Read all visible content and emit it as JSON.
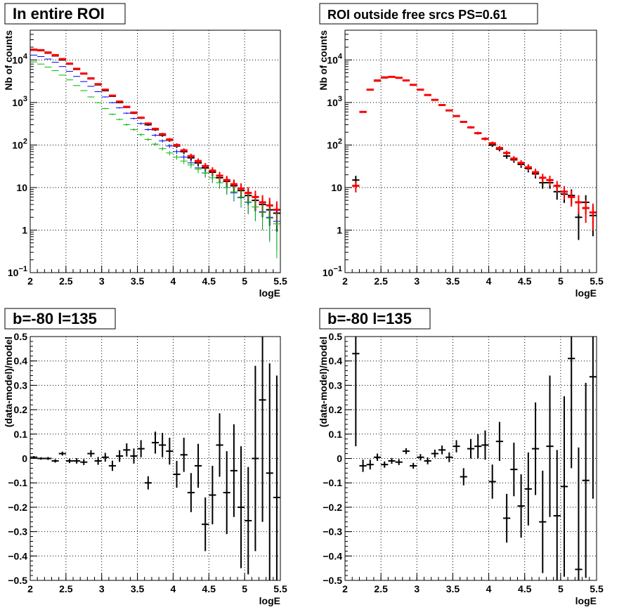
{
  "chart_data": [
    {
      "type": "scatter",
      "title": "In entire ROI",
      "xlabel": "logE",
      "ylabel": "Nb of counts",
      "xlim": [
        2,
        5.5
      ],
      "ylim": [
        0.1,
        50000
      ],
      "yscale": "log",
      "grid": true,
      "x_ticks": [
        "2",
        "2.5",
        "3",
        "3.5",
        "4",
        "4.5",
        "5",
        "5.5"
      ],
      "y_ticks": [
        {
          "value": 0.1,
          "base": "10",
          "exp": "−1"
        },
        {
          "value": 1,
          "base": "1",
          "exp": ""
        },
        {
          "value": 10,
          "base": "10",
          "exp": ""
        },
        {
          "value": 100,
          "base": "10",
          "exp": "2"
        },
        {
          "value": 1000,
          "base": "10",
          "exp": "3"
        },
        {
          "value": 10000,
          "base": "10",
          "exp": "4"
        }
      ],
      "x": [
        2.05,
        2.15,
        2.25,
        2.35,
        2.45,
        2.55,
        2.65,
        2.75,
        2.85,
        2.95,
        3.05,
        3.15,
        3.25,
        3.35,
        3.45,
        3.55,
        3.65,
        3.75,
        3.85,
        3.95,
        4.05,
        4.15,
        4.25,
        4.35,
        4.45,
        4.55,
        4.65,
        4.75,
        4.85,
        4.95,
        5.05,
        5.15,
        5.25,
        5.35,
        5.45
      ],
      "series": [
        {
          "color": "#000000",
          "values": [
            17000,
            16500,
            14500,
            12500,
            10000,
            8000,
            6000,
            4700,
            3600,
            2600,
            1900,
            1400,
            1000,
            770,
            560,
            430,
            300,
            230,
            170,
            130,
            95,
            70,
            50,
            38,
            29,
            23,
            17,
            14,
            11,
            8.5,
            6.5,
            5,
            4,
            3,
            2.5
          ]
        },
        {
          "color": "#ff0000",
          "values": [
            17500,
            17000,
            15000,
            13000,
            10500,
            8200,
            6200,
            4800,
            3700,
            2700,
            2000,
            1450,
            1050,
            790,
            580,
            440,
            320,
            240,
            180,
            135,
            100,
            75,
            55,
            42,
            32,
            25,
            19,
            15,
            12,
            9.5,
            7.5,
            6,
            4.5,
            3.8,
            3
          ]
        },
        {
          "color": "#0000ff",
          "values": [
            13000,
            12000,
            10500,
            8800,
            7000,
            5400,
            4100,
            3100,
            2400,
            1800,
            1350,
            990,
            750,
            560,
            420,
            320,
            230,
            170,
            125,
            95,
            70,
            52,
            38,
            29,
            22,
            17,
            13,
            10,
            7.5,
            5.8,
            4.5,
            3.5,
            2.7,
            2,
            1.6
          ]
        },
        {
          "color": "#00bb00",
          "values": [
            9000,
            8000,
            6800,
            5600,
            4400,
            3400,
            2500,
            1900,
            1350,
            990,
            720,
            530,
            400,
            300,
            230,
            175,
            135,
            105,
            82,
            65,
            52,
            42,
            34,
            27,
            22,
            17,
            13,
            10,
            8,
            6,
            4.6,
            3.5,
            2.6,
            1.9,
            1.4
          ]
        }
      ]
    },
    {
      "type": "scatter",
      "title": "ROI outside free srcs PS=0.61",
      "xlabel": "logE",
      "ylabel": "Nb of counts",
      "xlim": [
        2,
        5.5
      ],
      "ylim": [
        0.1,
        50000
      ],
      "yscale": "log",
      "grid": true,
      "x_ticks": [
        "2",
        "2.5",
        "3",
        "3.5",
        "4",
        "4.5",
        "5",
        "5.5"
      ],
      "y_ticks": [
        {
          "value": 0.1,
          "base": "10",
          "exp": "−1"
        },
        {
          "value": 1,
          "base": "1",
          "exp": ""
        },
        {
          "value": 10,
          "base": "10",
          "exp": ""
        },
        {
          "value": 100,
          "base": "10",
          "exp": "2"
        },
        {
          "value": 1000,
          "base": "10",
          "exp": "3"
        },
        {
          "value": 10000,
          "base": "10",
          "exp": "4"
        }
      ],
      "x": [
        2.15,
        2.25,
        2.35,
        2.45,
        2.55,
        2.65,
        2.75,
        2.85,
        2.95,
        3.05,
        3.15,
        3.25,
        3.35,
        3.45,
        3.55,
        3.65,
        3.75,
        3.85,
        3.95,
        4.05,
        4.15,
        4.25,
        4.35,
        4.45,
        4.55,
        4.65,
        4.75,
        4.85,
        4.95,
        5.05,
        5.15,
        5.25,
        5.35,
        5.45
      ],
      "series": [
        {
          "color": "#000000",
          "values": [
            15,
            600,
            2000,
            3200,
            3800,
            4000,
            3800,
            3300,
            2600,
            2000,
            1500,
            1150,
            870,
            650,
            480,
            350,
            260,
            190,
            140,
            100,
            80,
            55,
            45,
            35,
            28,
            21,
            13,
            13,
            8,
            7,
            6.5,
            2,
            4.5,
            2.2
          ]
        },
        {
          "color": "#ff0000",
          "values": [
            11,
            600,
            2000,
            3300,
            3900,
            4000,
            3800,
            3300,
            2600,
            2000,
            1500,
            1150,
            870,
            650,
            480,
            350,
            260,
            190,
            140,
            110,
            85,
            65,
            48,
            38,
            30,
            23,
            17,
            15,
            11,
            8,
            6,
            4.5,
            3.3,
            2.6
          ]
        }
      ]
    },
    {
      "type": "scatter",
      "title": "b=-80 l=135",
      "xlabel": "logE",
      "ylabel": "(data-model)/model",
      "xlim": [
        2,
        5.5
      ],
      "ylim": [
        -0.5,
        0.5
      ],
      "grid": true,
      "x_ticks": [
        "2",
        "2.5",
        "3",
        "3.5",
        "4",
        "4.5",
        "5",
        "5.5"
      ],
      "y_ticks": [
        "−0.5",
        "−0.4",
        "−0.3",
        "−0.2",
        "−0.1",
        "0",
        "0.1",
        "0.2",
        "0.3",
        "0.4",
        "0.5"
      ],
      "x": [
        2.05,
        2.15,
        2.25,
        2.35,
        2.45,
        2.55,
        2.65,
        2.75,
        2.85,
        2.95,
        3.05,
        3.15,
        3.25,
        3.35,
        3.45,
        3.55,
        3.65,
        3.75,
        3.85,
        3.95,
        4.05,
        4.15,
        4.25,
        4.35,
        4.45,
        4.55,
        4.65,
        4.75,
        4.85,
        4.95,
        5.05,
        5.15,
        5.25,
        5.35,
        5.45
      ],
      "series": [
        {
          "color": "#000000",
          "values": [
            0.005,
            0,
            0,
            -0.01,
            0.02,
            -0.01,
            -0.01,
            -0.015,
            0.02,
            -0.01,
            0.005,
            -0.03,
            0.01,
            0.035,
            0.01,
            0.04,
            -0.1,
            0.065,
            0.055,
            0.03,
            -0.065,
            0.015,
            -0.14,
            -0.03,
            -0.27,
            -0.15,
            0.055,
            -0.14,
            -0.05,
            -0.2,
            -0.255,
            0,
            0.24,
            -0.06,
            -0.16
          ],
          "errors": [
            0.005,
            0.005,
            0.006,
            0.007,
            0.008,
            0.009,
            0.011,
            0.012,
            0.014,
            0.016,
            0.018,
            0.021,
            0.024,
            0.027,
            0.031,
            0.035,
            0.027,
            0.045,
            0.05,
            0.055,
            0.055,
            0.07,
            0.08,
            0.09,
            0.11,
            0.12,
            0.13,
            0.17,
            0.19,
            0.25,
            0.22,
            0.38,
            0.5,
            0.45,
            0.5
          ]
        }
      ]
    },
    {
      "type": "scatter",
      "title": "b=-80 l=135",
      "xlabel": "logE",
      "ylabel": "(data-model)/model",
      "xlim": [
        2,
        5.5
      ],
      "ylim": [
        -0.5,
        0.5
      ],
      "grid": true,
      "x_ticks": [
        "2",
        "2.5",
        "3",
        "3.5",
        "4",
        "4.5",
        "5",
        "5.5"
      ],
      "y_ticks": [
        "−0.5",
        "−0.4",
        "−0.3",
        "−0.2",
        "−0.1",
        "0",
        "0.1",
        "0.2",
        "0.3",
        "0.4",
        "0.5"
      ],
      "x": [
        2.15,
        2.25,
        2.35,
        2.45,
        2.55,
        2.65,
        2.75,
        2.85,
        2.95,
        3.05,
        3.15,
        3.25,
        3.35,
        3.45,
        3.55,
        3.65,
        3.75,
        3.85,
        3.95,
        4.05,
        4.15,
        4.25,
        4.35,
        4.45,
        4.55,
        4.65,
        4.75,
        4.85,
        4.95,
        5.05,
        5.15,
        5.25,
        5.35,
        5.45
      ],
      "series": [
        {
          "color": "#000000",
          "values": [
            0.43,
            -0.03,
            -0.025,
            0.005,
            -0.025,
            -0.01,
            -0.015,
            0.03,
            -0.03,
            0.005,
            -0.01,
            0.02,
            0.035,
            0.005,
            0.05,
            -0.075,
            0.04,
            0.05,
            0.055,
            -0.095,
            0.07,
            -0.245,
            -0.045,
            -0.195,
            -0.125,
            0.04,
            -0.26,
            0.05,
            -0.235,
            -0.115,
            0.41,
            -0.455,
            -0.09,
            0.335
          ],
          "errors": [
            0.38,
            0.025,
            0.02,
            0.015,
            0.013,
            0.012,
            0.012,
            0.012,
            0.012,
            0.013,
            0.014,
            0.016,
            0.018,
            0.02,
            0.025,
            0.035,
            0.04,
            0.05,
            0.06,
            0.07,
            0.08,
            0.1,
            0.11,
            0.13,
            0.15,
            0.19,
            0.21,
            0.29,
            0.27,
            0.37,
            0.45,
            0.5,
            0.4,
            0.5
          ]
        }
      ]
    }
  ]
}
